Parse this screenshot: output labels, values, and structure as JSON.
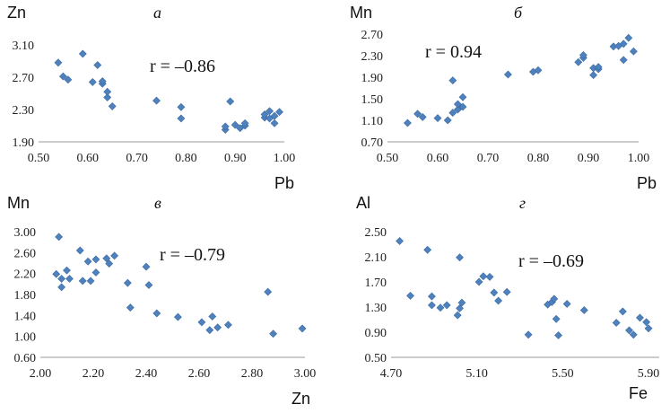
{
  "chart_data": [
    {
      "type": "scatter",
      "panel_label": "а",
      "ylabel": "Zn",
      "xlabel": "Pb",
      "annotation": "r = –0.86",
      "xlim": [
        0.5,
        1.0
      ],
      "ylim": [
        1.9,
        3.1
      ],
      "xticks": [
        "0.50",
        "0.60",
        "0.70",
        "0.80",
        "0.90",
        "1.00"
      ],
      "yticks": [
        "1.90",
        "2.30",
        "2.70",
        "3.10"
      ],
      "x": [
        0.54,
        0.55,
        0.56,
        0.59,
        0.61,
        0.62,
        0.63,
        0.63,
        0.64,
        0.64,
        0.65,
        0.74,
        0.79,
        0.79,
        0.88,
        0.88,
        0.89,
        0.9,
        0.91,
        0.92,
        0.92,
        0.96,
        0.96,
        0.97,
        0.97,
        0.98,
        0.98,
        0.99
      ],
      "y": [
        2.88,
        2.71,
        2.67,
        2.99,
        2.64,
        2.85,
        2.62,
        2.65,
        2.45,
        2.52,
        2.34,
        2.41,
        2.33,
        2.19,
        2.05,
        2.09,
        2.4,
        2.11,
        2.07,
        2.1,
        2.13,
        2.2,
        2.24,
        2.19,
        2.28,
        2.22,
        2.13,
        2.27
      ]
    },
    {
      "type": "scatter",
      "panel_label": "б",
      "ylabel": "Mn",
      "xlabel": "Pb",
      "annotation": "r = 0.94",
      "xlim": [
        0.5,
        1.0
      ],
      "ylim": [
        0.7,
        2.7
      ],
      "xticks": [
        "0.50",
        "0.60",
        "0.70",
        "0.80",
        "0.90",
        "1.00"
      ],
      "yticks": [
        "0.70",
        "1.10",
        "1.50",
        "1.90",
        "2.30",
        "2.70"
      ],
      "x": [
        0.54,
        0.56,
        0.57,
        0.6,
        0.62,
        0.63,
        0.63,
        0.64,
        0.64,
        0.65,
        0.65,
        0.74,
        0.79,
        0.8,
        0.88,
        0.89,
        0.89,
        0.91,
        0.91,
        0.92,
        0.92,
        0.95,
        0.96,
        0.97,
        0.97,
        0.98,
        0.99
      ],
      "y": [
        1.05,
        1.22,
        1.16,
        1.14,
        1.1,
        1.84,
        1.24,
        1.3,
        1.4,
        1.35,
        1.53,
        1.95,
        2.0,
        2.03,
        2.18,
        2.26,
        2.31,
        2.07,
        1.94,
        2.05,
        2.09,
        2.47,
        2.48,
        2.52,
        2.22,
        2.63,
        2.38
      ]
    },
    {
      "type": "scatter",
      "panel_label": "в",
      "ylabel": "Mn",
      "xlabel": "Zn",
      "annotation": "r = –0.79",
      "xlim": [
        2.0,
        3.0
      ],
      "ylim": [
        0.6,
        3.0
      ],
      "xticks": [
        "2.00",
        "2.20",
        "2.40",
        "2.60",
        "2.80",
        "3.00"
      ],
      "yticks": [
        "0.60",
        "1.00",
        "1.40",
        "1.80",
        "2.20",
        "2.60",
        "3.00"
      ],
      "x": [
        2.06,
        2.07,
        2.08,
        2.08,
        2.1,
        2.11,
        2.15,
        2.16,
        2.18,
        2.19,
        2.21,
        2.21,
        2.25,
        2.26,
        2.28,
        2.33,
        2.34,
        2.4,
        2.41,
        2.44,
        2.52,
        2.61,
        2.64,
        2.65,
        2.67,
        2.71,
        2.86,
        2.88,
        2.99
      ],
      "y": [
        2.19,
        2.9,
        2.1,
        1.94,
        2.26,
        2.1,
        2.64,
        2.06,
        2.43,
        2.06,
        2.22,
        2.47,
        2.49,
        2.39,
        2.54,
        2.02,
        1.55,
        2.33,
        1.98,
        1.44,
        1.37,
        1.27,
        1.12,
        1.38,
        1.17,
        1.22,
        1.85,
        1.05,
        1.15
      ]
    },
    {
      "type": "scatter",
      "panel_label": "г",
      "ylabel": "Al",
      "xlabel": "Fe",
      "annotation": "r = –0.69",
      "xlim": [
        4.7,
        5.95
      ],
      "ylim": [
        0.5,
        2.5
      ],
      "xticks": [
        "4.70",
        "5.10",
        "5.50",
        "5.90"
      ],
      "yticks": [
        "0.50",
        "0.90",
        "1.30",
        "1.70",
        "2.10",
        "2.50"
      ],
      "x": [
        4.74,
        4.79,
        4.87,
        4.89,
        4.89,
        4.93,
        4.96,
        5.01,
        5.02,
        5.02,
        5.03,
        5.11,
        5.13,
        5.16,
        5.18,
        5.2,
        5.24,
        5.34,
        5.43,
        5.45,
        5.46,
        5.47,
        5.48,
        5.52,
        5.6,
        5.75,
        5.78,
        5.81,
        5.83,
        5.86,
        5.89,
        5.9
      ],
      "y": [
        2.35,
        1.48,
        2.21,
        1.47,
        1.33,
        1.29,
        1.33,
        1.17,
        2.09,
        1.28,
        1.37,
        1.7,
        1.79,
        1.78,
        1.53,
        1.4,
        1.54,
        0.86,
        1.34,
        1.38,
        1.43,
        1.11,
        0.85,
        1.35,
        1.25,
        1.05,
        1.23,
        0.93,
        0.86,
        1.13,
        1.06,
        0.96
      ]
    }
  ]
}
